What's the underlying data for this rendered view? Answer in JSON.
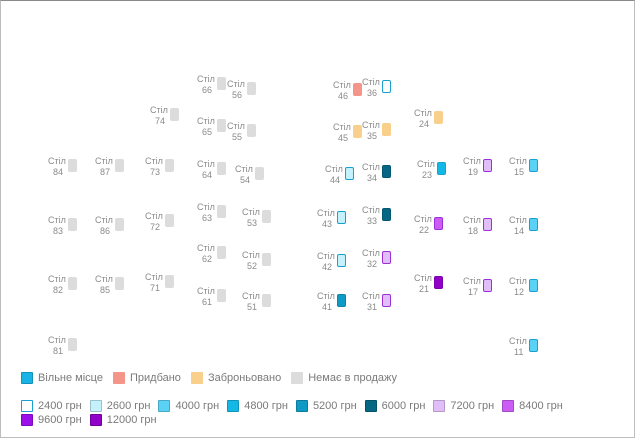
{
  "table_word": "Стіл",
  "colors": {
    "free": "#1ab3e6",
    "sold": "#f4958a",
    "reserved": "#f9cf8c",
    "unavailable": "#dcdcdc",
    "p2400": "#ffffff",
    "p2600": "#c4f1fb",
    "p4000": "#5ad2f5",
    "p4800": "#14b8e6",
    "p5200": "#0f9ac6",
    "p6000": "#066784",
    "p7200": "#e1bef7",
    "p8400": "#cb5df4",
    "p9600": "#9b0fe8",
    "p12000": "#8f00c9"
  },
  "tables": [
    {
      "num": "84",
      "status": "unavailable"
    },
    {
      "num": "83",
      "status": "unavailable"
    },
    {
      "num": "82",
      "status": "unavailable"
    },
    {
      "num": "81",
      "status": "unavailable"
    },
    {
      "num": "87",
      "status": "unavailable"
    },
    {
      "num": "86",
      "status": "unavailable"
    },
    {
      "num": "85",
      "status": "unavailable"
    },
    {
      "num": "74",
      "status": "unavailable"
    },
    {
      "num": "73",
      "status": "unavailable"
    },
    {
      "num": "72",
      "status": "unavailable"
    },
    {
      "num": "71",
      "status": "unavailable"
    },
    {
      "num": "66",
      "status": "unavailable"
    },
    {
      "num": "65",
      "status": "unavailable"
    },
    {
      "num": "64",
      "status": "unavailable"
    },
    {
      "num": "63",
      "status": "unavailable"
    },
    {
      "num": "62",
      "status": "unavailable"
    },
    {
      "num": "61",
      "status": "unavailable"
    },
    {
      "num": "56",
      "status": "unavailable"
    },
    {
      "num": "55",
      "status": "unavailable"
    },
    {
      "num": "54",
      "status": "unavailable"
    },
    {
      "num": "53",
      "status": "unavailable"
    },
    {
      "num": "52",
      "status": "unavailable"
    },
    {
      "num": "51",
      "status": "unavailable"
    },
    {
      "num": "46",
      "status": "sold"
    },
    {
      "num": "45",
      "status": "reserved"
    },
    {
      "num": "44",
      "status": "free",
      "price": "2600"
    },
    {
      "num": "43",
      "status": "free",
      "price": "2600"
    },
    {
      "num": "42",
      "status": "free",
      "price": "2600"
    },
    {
      "num": "41",
      "status": "free",
      "price": "5200"
    },
    {
      "num": "36",
      "status": "free",
      "price": "2400"
    },
    {
      "num": "35",
      "status": "reserved"
    },
    {
      "num": "34",
      "status": "free",
      "price": "6000"
    },
    {
      "num": "33",
      "status": "free",
      "price": "6000"
    },
    {
      "num": "32",
      "status": "free",
      "price": "7200"
    },
    {
      "num": "31",
      "status": "free",
      "price": "7200"
    },
    {
      "num": "24",
      "status": "reserved"
    },
    {
      "num": "23",
      "status": "free",
      "price": "4800"
    },
    {
      "num": "22",
      "status": "free",
      "price": "8400"
    },
    {
      "num": "21",
      "status": "free",
      "price": "12000"
    },
    {
      "num": "19",
      "status": "free",
      "price": "7200"
    },
    {
      "num": "18",
      "status": "free",
      "price": "7200"
    },
    {
      "num": "17",
      "status": "free",
      "price": "7200"
    },
    {
      "num": "15",
      "status": "free",
      "price": "4000"
    },
    {
      "num": "14",
      "status": "free",
      "price": "4000"
    },
    {
      "num": "12",
      "status": "free",
      "price": "4000"
    },
    {
      "num": "11",
      "status": "free",
      "price": "4000"
    }
  ],
  "legend_status": [
    {
      "key": "free",
      "label": "Вільне місце"
    },
    {
      "key": "sold",
      "label": "Придбано"
    },
    {
      "key": "reserved",
      "label": "Заброньовано"
    },
    {
      "key": "unavailable",
      "label": "Немає в продажу"
    }
  ],
  "legend_prices": [
    {
      "key": "p2400",
      "label": "2400 грн"
    },
    {
      "key": "p2600",
      "label": "2600 грн"
    },
    {
      "key": "p4000",
      "label": "4000 грн"
    },
    {
      "key": "p4800",
      "label": "4800 грн"
    },
    {
      "key": "p5200",
      "label": "5200 грн"
    },
    {
      "key": "p6000",
      "label": "6000 грн"
    },
    {
      "key": "p7200",
      "label": "7200 грн"
    },
    {
      "key": "p8400",
      "label": "8400 грн"
    },
    {
      "key": "p9600",
      "label": "9600 грн"
    },
    {
      "key": "p12000",
      "label": "12000 грн"
    }
  ]
}
